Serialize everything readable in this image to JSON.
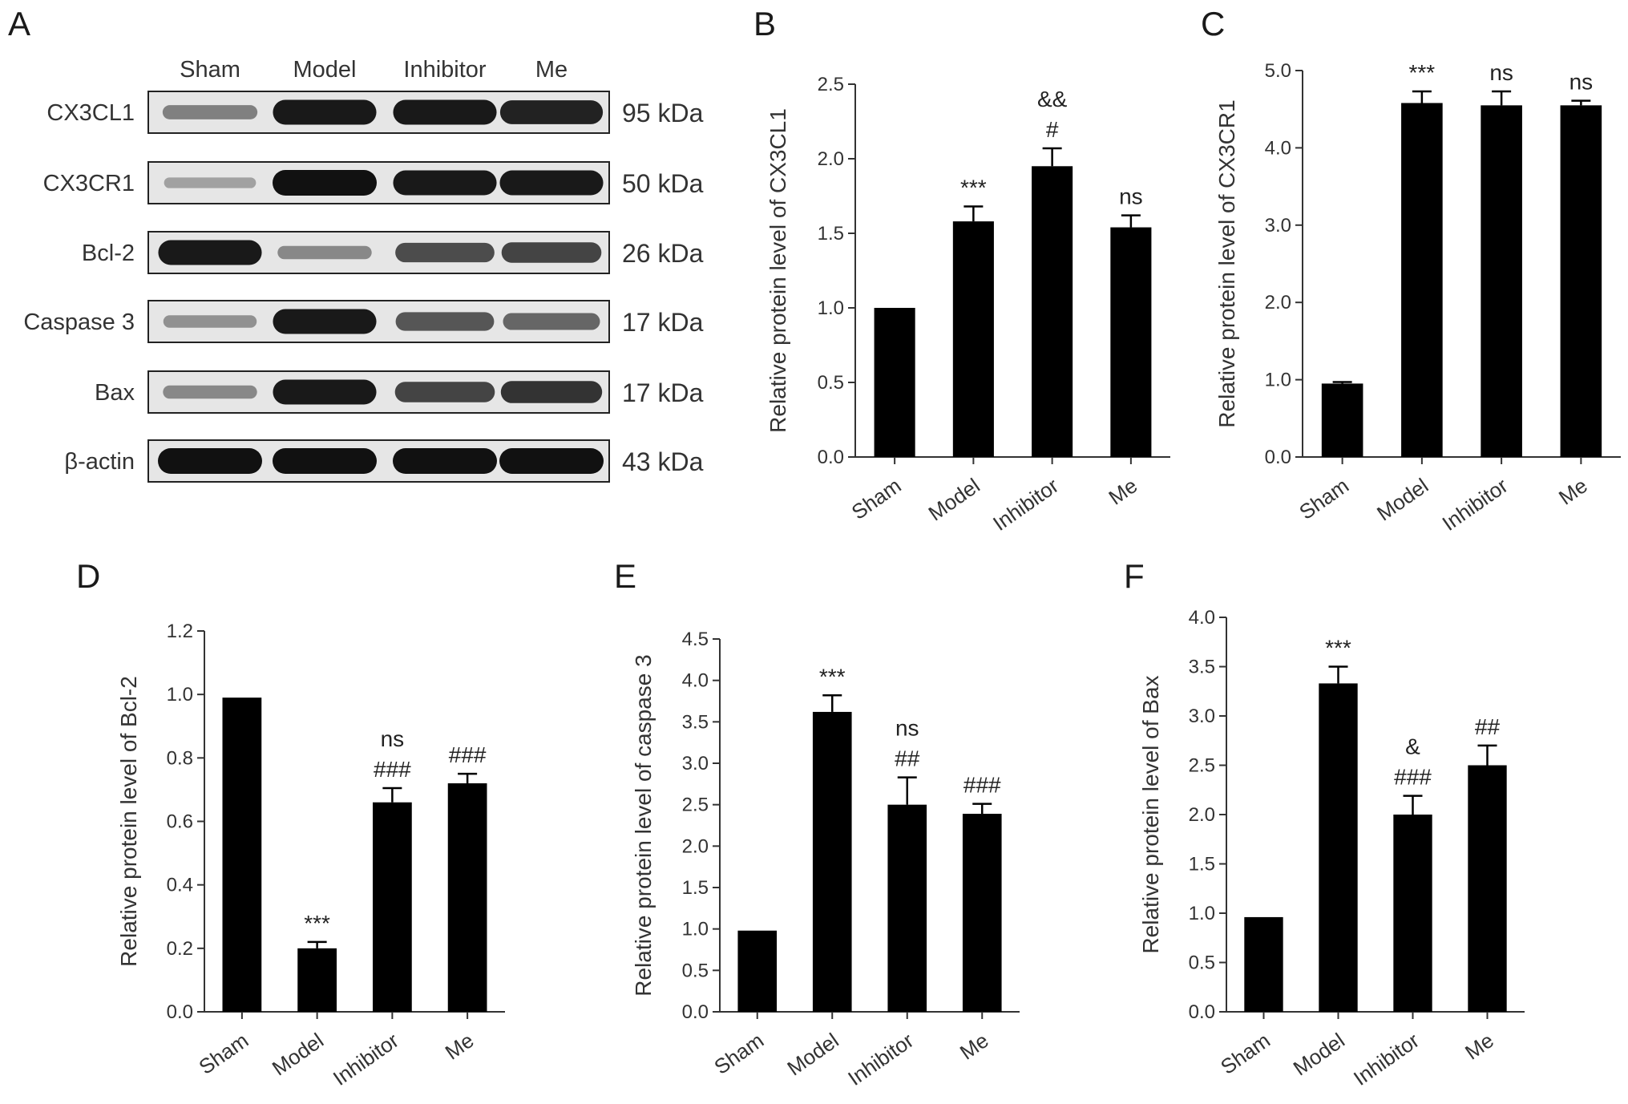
{
  "colors": {
    "bar": "#000000",
    "axis": "#333333",
    "text": "#333333",
    "blot_bg": "#e6e6e6",
    "band": "#111111"
  },
  "western_blot": {
    "panel": "A",
    "lanes": [
      "Sham",
      "Model",
      "Inhibitor",
      "Me"
    ],
    "rows": [
      {
        "protein": "CX3CL1",
        "size": "95 kDa",
        "intensity": [
          0.35,
          0.95,
          0.95,
          0.9
        ]
      },
      {
        "protein": "CX3CR1",
        "size": "50 kDa",
        "intensity": [
          0.15,
          1.0,
          0.95,
          0.95
        ]
      },
      {
        "protein": "Bcl-2",
        "size": "26 kDa",
        "intensity": [
          0.95,
          0.3,
          0.65,
          0.7
        ]
      },
      {
        "protein": "Caspase 3",
        "size": "17 kDa",
        "intensity": [
          0.25,
          0.95,
          0.6,
          0.5
        ]
      },
      {
        "protein": "Bax",
        "size": "17 kDa",
        "intensity": [
          0.3,
          0.95,
          0.7,
          0.8
        ]
      },
      {
        "protein": "β-actin",
        "size": "43 kDa",
        "intensity": [
          1.0,
          1.0,
          1.0,
          1.0
        ]
      }
    ]
  },
  "chart_data": [
    {
      "panel": "B",
      "type": "bar",
      "categories": [
        "Sham",
        "Model",
        "Inhibitor",
        "Me"
      ],
      "values": [
        1.0,
        1.58,
        1.95,
        1.54
      ],
      "errors": [
        0,
        0.1,
        0.12,
        0.08
      ],
      "annotations": [
        [],
        [
          "***"
        ],
        [
          "&&",
          "#"
        ],
        [
          "ns"
        ]
      ],
      "ylabel": "Relative protein level of CX3CL1",
      "ylim": [
        0,
        2.5
      ],
      "yticks": [
        "0.0",
        "0.5",
        "1.0",
        "1.5",
        "2.0",
        "2.5"
      ]
    },
    {
      "panel": "C",
      "type": "bar",
      "categories": [
        "Sham",
        "Model",
        "Inhibitor",
        "Me"
      ],
      "values": [
        0.95,
        4.58,
        4.55,
        4.55
      ],
      "errors": [
        0.02,
        0.15,
        0.18,
        0.06
      ],
      "annotations": [
        [],
        [
          "***"
        ],
        [
          "ns"
        ],
        [
          "ns"
        ]
      ],
      "ylabel": "Relative protein level of CX3CR1",
      "ylim": [
        0,
        5.0
      ],
      "yticks": [
        "0.0",
        "1.0",
        "2.0",
        "3.0",
        "4.0",
        "5.0"
      ]
    },
    {
      "panel": "D",
      "type": "bar",
      "categories": [
        "Sham",
        "Model",
        "Inhibitor",
        "Me"
      ],
      "values": [
        0.99,
        0.2,
        0.66,
        0.72
      ],
      "errors": [
        0,
        0.02,
        0.045,
        0.03
      ],
      "annotations": [
        [],
        [
          "***"
        ],
        [
          "ns",
          "###"
        ],
        [
          "###"
        ]
      ],
      "ylabel": "Relative protein level of  Bcl-2",
      "ylim": [
        0,
        1.2
      ],
      "yticks": [
        "0.0",
        "0.2",
        "0.4",
        "0.6",
        "0.8",
        "1.0",
        "1.2"
      ]
    },
    {
      "panel": "E",
      "type": "bar",
      "categories": [
        "Sham",
        "Model",
        "Inhibitor",
        "Me"
      ],
      "values": [
        0.98,
        3.62,
        2.5,
        2.39
      ],
      "errors": [
        0,
        0.2,
        0.33,
        0.12
      ],
      "annotations": [
        [],
        [
          "***"
        ],
        [
          "ns",
          "##"
        ],
        [
          "###"
        ]
      ],
      "ylabel": "Relative protein level of  caspase 3",
      "ylim": [
        0,
        4.5
      ],
      "yticks": [
        "0.0",
        "0.5",
        "1.0",
        "1.5",
        "2.0",
        "2.5",
        "3.0",
        "3.5",
        "4.0",
        "4.5"
      ]
    },
    {
      "panel": "F",
      "type": "bar",
      "categories": [
        "Sham",
        "Model",
        "Inhibitor",
        "Me"
      ],
      "values": [
        0.96,
        3.33,
        2.0,
        2.5
      ],
      "errors": [
        0,
        0.17,
        0.19,
        0.2
      ],
      "annotations": [
        [],
        [
          "***"
        ],
        [
          "&",
          "###"
        ],
        [
          "##"
        ]
      ],
      "ylabel": "Relative protein level of Bax",
      "ylim": [
        0,
        4.0
      ],
      "yticks": [
        "0.0",
        "0.5",
        "1.0",
        "1.5",
        "2.0",
        "2.5",
        "3.0",
        "3.5",
        "4.0"
      ]
    }
  ]
}
